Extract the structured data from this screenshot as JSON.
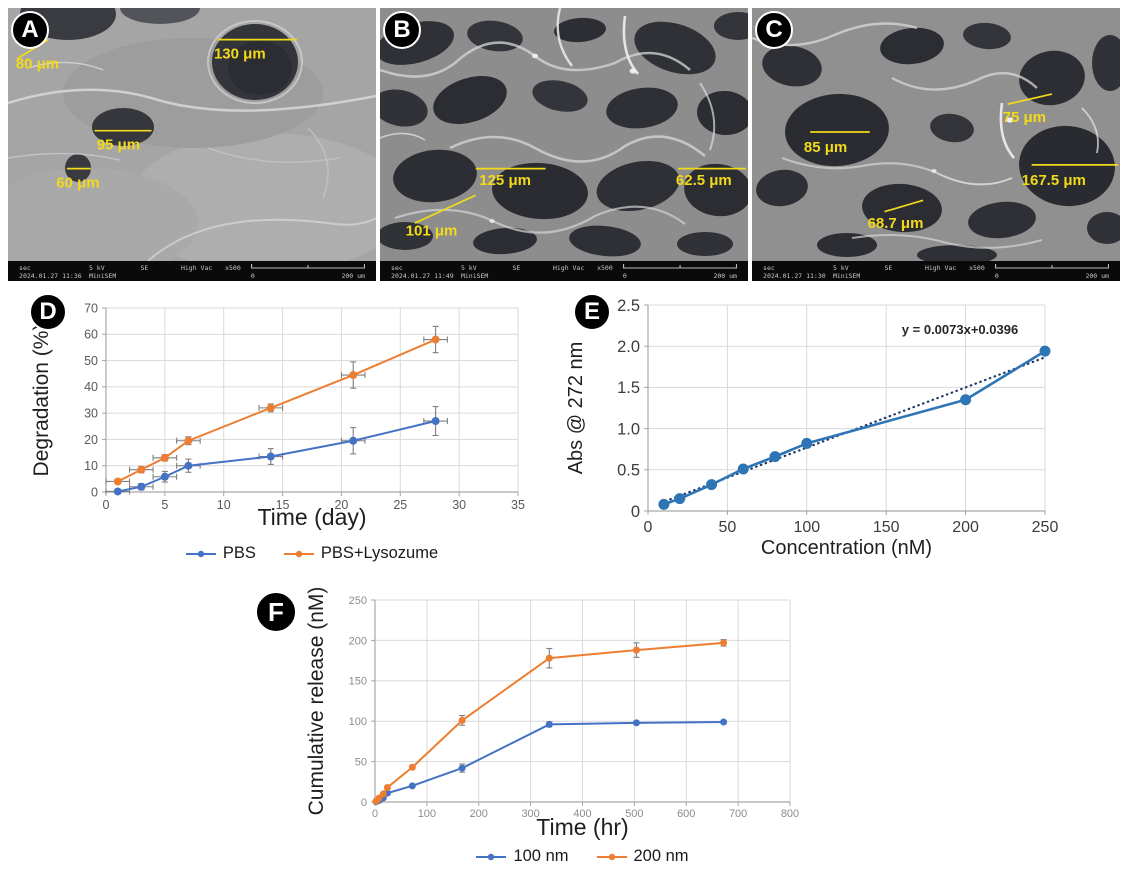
{
  "colors": {
    "blue": "#4472c4",
    "orange": "#ed7d31",
    "error_bar": "#7f7f7f",
    "gridline": "#d9d9d9",
    "axis": "#a6a6a6",
    "sem_annotation": "#f2da1a",
    "trendline": "#1f3864"
  },
  "sem_panels": [
    {
      "label": "A",
      "measurements": [
        {
          "text": "80 μm",
          "lx": 8,
          "ly": 24,
          "line": [
            2.5,
            20,
            11,
            12.5
          ]
        },
        {
          "text": "130 μm",
          "lx": 63,
          "ly": 20,
          "line": [
            57,
            12.5,
            78.5,
            12.5
          ]
        },
        {
          "text": "95 μm",
          "lx": 30,
          "ly": 56,
          "line": [
            23.5,
            48.5,
            39,
            48.5
          ]
        },
        {
          "text": "60 μm",
          "lx": 19,
          "ly": 71,
          "line": [
            16,
            63.5,
            22.5,
            63.5
          ]
        }
      ],
      "status": {
        "mode": "sec",
        "datetime": "2024.01.27 11:36",
        "voltage": "5 kV",
        "device": "MiniSEM",
        "detector": "SE",
        "vacuum": "High Vac",
        "magnification": "x500",
        "scale_zero": "0",
        "scale_label": "200 um"
      }
    },
    {
      "label": "B",
      "measurements": [
        {
          "text": "125 μm",
          "lx": 34,
          "ly": 70,
          "line": [
            26,
            63.5,
            45,
            63.5
          ]
        },
        {
          "text": "62.5 μm",
          "lx": 88,
          "ly": 70,
          "line": [
            81,
            63.5,
            99.5,
            63.5
          ]
        },
        {
          "text": "101 μm",
          "lx": 14,
          "ly": 90,
          "line": [
            9.5,
            85,
            26,
            74
          ]
        }
      ],
      "status": {
        "mode": "sec",
        "datetime": "2024.01.27 11:49",
        "voltage": "5 kV",
        "device": "MiniSEM",
        "detector": "SE",
        "vacuum": "High Vac",
        "magnification": "x500",
        "scale_zero": "0",
        "scale_label": "200 um"
      }
    },
    {
      "label": "C",
      "measurements": [
        {
          "text": "75 μm",
          "lx": 74,
          "ly": 45,
          "line": [
            69.5,
            38,
            81.5,
            34
          ]
        },
        {
          "text": "85 μm",
          "lx": 20,
          "ly": 57,
          "line": [
            15.8,
            49,
            32,
            49
          ]
        },
        {
          "text": "167.5 μm",
          "lx": 82,
          "ly": 70,
          "line": [
            76,
            62,
            99.5,
            62
          ]
        },
        {
          "text": "68.7 μm",
          "lx": 39,
          "ly": 87,
          "line": [
            36,
            80.5,
            46.5,
            76
          ]
        }
      ],
      "status": {
        "mode": "sec",
        "datetime": "2024.01.27 11:30",
        "voltage": "5 kV",
        "device": "MiniSEM",
        "detector": "SE",
        "vacuum": "High Vac",
        "magnification": "x500",
        "scale_zero": "0",
        "scale_label": "200 um"
      }
    }
  ],
  "chart_data": [
    {
      "panel_label": "D",
      "type": "line",
      "title": "",
      "xlabel": "Time (day)",
      "ylabel": "Degradation (%)",
      "xlim": [
        0,
        35
      ],
      "ylim": [
        0,
        70
      ],
      "xticks": [
        0,
        5,
        10,
        15,
        20,
        25,
        30,
        35
      ],
      "yticks": [
        0,
        10,
        20,
        30,
        40,
        50,
        60,
        70
      ],
      "grid": true,
      "legend_position": "bottom",
      "series": [
        {
          "name": "PBS",
          "color": "#4472c4",
          "x": [
            1,
            3,
            5,
            7,
            14,
            21,
            28
          ],
          "y": [
            0.2,
            2,
            5.8,
            10,
            13.5,
            19.5,
            27
          ],
          "xerr": [
            1,
            1,
            1,
            1,
            1,
            1,
            1
          ],
          "yerr": [
            0.8,
            1.2,
            2,
            2.5,
            3,
            5,
            5.5
          ]
        },
        {
          "name": "PBS+Lysozume",
          "color": "#ed7d31",
          "x": [
            1,
            3,
            5,
            7,
            14,
            21,
            28
          ],
          "y": [
            4,
            8.5,
            13,
            19.5,
            32,
            44.5,
            58
          ],
          "xerr": [
            1,
            1,
            1,
            1,
            1,
            1,
            1
          ],
          "yerr": [
            0.8,
            1.2,
            1.2,
            1.5,
            1.5,
            5,
            5
          ]
        }
      ]
    },
    {
      "panel_label": "E",
      "type": "line",
      "title": "",
      "xlabel": "Concentration (nM)",
      "ylabel": "Abs @ 272 nm",
      "xlim": [
        0,
        250
      ],
      "ylim": [
        0,
        2.5
      ],
      "xticks": [
        0,
        50,
        100,
        150,
        200,
        250
      ],
      "yticks": [
        0,
        0.5,
        1.0,
        1.5,
        2.0,
        2.5
      ],
      "ytick_labels": [
        "0",
        "0.5",
        "1.0",
        "1.5",
        "2.0",
        "2.5"
      ],
      "grid": true,
      "annotation": "y = 0.0073x+0.0396",
      "trendline": {
        "slope": 0.0073,
        "intercept": 0.0396,
        "x_range": [
          8,
          250
        ],
        "style": "dotted",
        "color": "#1f3864"
      },
      "legend_position": "none",
      "series": [
        {
          "name": "Abs @ 272 nm",
          "color": "#2e75b6",
          "marker_size": 5.5,
          "x": [
            10,
            20,
            40,
            60,
            80,
            100,
            200,
            250
          ],
          "y": [
            0.08,
            0.15,
            0.32,
            0.51,
            0.66,
            0.82,
            1.35,
            1.94
          ]
        }
      ]
    },
    {
      "panel_label": "F",
      "type": "line",
      "title": "",
      "xlabel": "Time (hr)",
      "ylabel": "Cumulative release  (nM)",
      "xlim": [
        0,
        800
      ],
      "ylim": [
        0,
        250
      ],
      "xticks": [
        0,
        100,
        200,
        300,
        400,
        500,
        600,
        700,
        800
      ],
      "yticks": [
        0,
        50,
        100,
        150,
        200,
        250
      ],
      "grid": true,
      "legend_position": "bottom",
      "series": [
        {
          "name": "100 nm",
          "color": "#4472c4",
          "x": [
            2,
            4,
            8,
            16,
            24,
            72,
            168,
            336,
            504,
            672
          ],
          "y": [
            0.5,
            1,
            2,
            5,
            11,
            20,
            42,
            96,
            98,
            99
          ],
          "yerr": [
            0.3,
            0.4,
            0.6,
            1,
            1.5,
            1.5,
            5,
            3,
            2,
            1.5
          ]
        },
        {
          "name": "200 nm",
          "color": "#ed7d31",
          "x": [
            2,
            4,
            8,
            16,
            24,
            72,
            168,
            336,
            504,
            672
          ],
          "y": [
            1,
            2,
            5,
            10,
            18,
            43,
            101,
            178,
            188,
            197
          ],
          "yerr": [
            0.4,
            0.6,
            1,
            1.5,
            2.5,
            2,
            6,
            12,
            9,
            4
          ]
        }
      ]
    }
  ]
}
